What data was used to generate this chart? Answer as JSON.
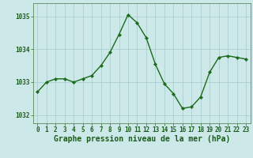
{
  "x": [
    0,
    1,
    2,
    3,
    4,
    5,
    6,
    7,
    8,
    9,
    10,
    11,
    12,
    13,
    14,
    15,
    16,
    17,
    18,
    19,
    20,
    21,
    22,
    23
  ],
  "y": [
    1032.7,
    1033.0,
    1033.1,
    1033.1,
    1033.0,
    1033.1,
    1033.2,
    1033.5,
    1033.9,
    1034.45,
    1035.05,
    1034.8,
    1034.35,
    1033.55,
    1032.95,
    1032.65,
    1032.2,
    1032.25,
    1032.55,
    1033.3,
    1033.75,
    1033.8,
    1033.75,
    1033.7
  ],
  "line_color": "#1a6b1a",
  "marker": "D",
  "marker_size": 2.2,
  "linewidth": 1.0,
  "background_color": "#cce8e8",
  "grid_color": "#aad0d0",
  "xlabel": "Graphe pression niveau de la mer (hPa)",
  "xlabel_fontsize": 7.0,
  "xlabel_color": "#1a5c1a",
  "ytick_labels": [
    1032,
    1033,
    1034,
    1035
  ],
  "ylim": [
    1031.75,
    1035.4
  ],
  "xlim": [
    -0.5,
    23.5
  ],
  "xtick_fontsize": 5.5,
  "ytick_fontsize": 5.5,
  "tick_color": "#1a5c1a",
  "spine_color": "#5a8a5a"
}
